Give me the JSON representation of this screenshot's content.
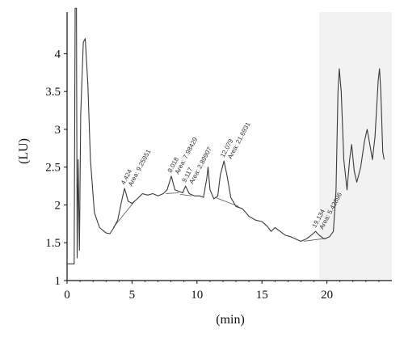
{
  "chart_data": {
    "type": "line",
    "xlabel": "(min)",
    "ylabel": "(LU)",
    "xlim": [
      0,
      25
    ],
    "ylim": [
      1,
      4.55
    ],
    "x_ticks": [
      0,
      5,
      10,
      15,
      20
    ],
    "y_ticks": [
      1,
      1.5,
      2,
      2.5,
      3,
      3.5,
      4
    ],
    "grid": false,
    "series": [
      {
        "points": [
          [
            0,
            1.22
          ],
          [
            0.55,
            1.22
          ],
          [
            0.62,
            4.6
          ],
          [
            0.72,
            4.6
          ],
          [
            0.78,
            1.3
          ],
          [
            0.85,
            2.6
          ],
          [
            0.95,
            1.4
          ],
          [
            1.05,
            3.2
          ],
          [
            1.25,
            4.15
          ],
          [
            1.4,
            4.2
          ],
          [
            1.6,
            3.6
          ],
          [
            1.8,
            2.6
          ],
          [
            2.1,
            1.9
          ],
          [
            2.5,
            1.7
          ],
          [
            3.0,
            1.63
          ],
          [
            3.3,
            1.62
          ],
          [
            3.6,
            1.7
          ],
          [
            3.9,
            1.8
          ],
          [
            4.2,
            2.05
          ],
          [
            4.42,
            2.22
          ],
          [
            4.7,
            2.05
          ],
          [
            5.0,
            2.02
          ],
          [
            5.4,
            2.08
          ],
          [
            5.8,
            2.15
          ],
          [
            6.2,
            2.13
          ],
          [
            6.6,
            2.15
          ],
          [
            7.0,
            2.12
          ],
          [
            7.4,
            2.15
          ],
          [
            7.7,
            2.2
          ],
          [
            8.02,
            2.38
          ],
          [
            8.3,
            2.2
          ],
          [
            8.6,
            2.18
          ],
          [
            8.9,
            2.16
          ],
          [
            9.12,
            2.25
          ],
          [
            9.4,
            2.15
          ],
          [
            9.8,
            2.12
          ],
          [
            10.2,
            2.12
          ],
          [
            10.5,
            2.1
          ],
          [
            10.75,
            2.35
          ],
          [
            10.85,
            2.5
          ],
          [
            11.0,
            2.2
          ],
          [
            11.3,
            2.08
          ],
          [
            11.6,
            2.12
          ],
          [
            11.8,
            2.4
          ],
          [
            12.08,
            2.58
          ],
          [
            12.3,
            2.4
          ],
          [
            12.6,
            2.1
          ],
          [
            13.0,
            1.98
          ],
          [
            13.5,
            1.95
          ],
          [
            14.0,
            1.85
          ],
          [
            14.5,
            1.8
          ],
          [
            15.0,
            1.78
          ],
          [
            15.4,
            1.72
          ],
          [
            15.7,
            1.65
          ],
          [
            16.0,
            1.7
          ],
          [
            16.4,
            1.65
          ],
          [
            16.8,
            1.6
          ],
          [
            17.2,
            1.58
          ],
          [
            17.6,
            1.55
          ],
          [
            18.0,
            1.52
          ],
          [
            18.4,
            1.55
          ],
          [
            18.8,
            1.6
          ],
          [
            19.13,
            1.65
          ],
          [
            19.4,
            1.6
          ],
          [
            19.8,
            1.55
          ],
          [
            20.2,
            1.58
          ],
          [
            20.5,
            1.65
          ],
          [
            20.7,
            2.2
          ],
          [
            20.85,
            3.5
          ],
          [
            20.95,
            3.8
          ],
          [
            21.1,
            3.5
          ],
          [
            21.3,
            2.6
          ],
          [
            21.55,
            2.2
          ],
          [
            21.75,
            2.6
          ],
          [
            21.9,
            2.8
          ],
          [
            22.1,
            2.45
          ],
          [
            22.3,
            2.3
          ],
          [
            22.6,
            2.5
          ],
          [
            22.9,
            2.85
          ],
          [
            23.1,
            3.0
          ],
          [
            23.3,
            2.8
          ],
          [
            23.5,
            2.6
          ],
          [
            23.7,
            2.9
          ],
          [
            23.95,
            3.65
          ],
          [
            24.05,
            3.8
          ],
          [
            24.15,
            3.5
          ],
          [
            24.3,
            2.7
          ],
          [
            24.4,
            2.6
          ]
        ]
      }
    ],
    "peak_annotations": [
      {
        "x": 4.424,
        "y": 2.22,
        "rt": "4.424",
        "area": "Area: 9.25951"
      },
      {
        "x": 8.018,
        "y": 2.38,
        "rt": "8.018",
        "area": "Area: 7.98429"
      },
      {
        "x": 9.117,
        "y": 2.25,
        "rt": "9.117",
        "area": "Area: 2.89907"
      },
      {
        "x": 12.079,
        "y": 2.58,
        "rt": "12.079",
        "area": "Area: 21.6931"
      },
      {
        "x": 19.134,
        "y": 1.65,
        "rt": "19.134",
        "area": "Area: 5.42896"
      }
    ],
    "baselines": [
      [
        [
          3.55,
          1.7
        ],
        [
          5.2,
          2.05
        ]
      ],
      [
        [
          7.6,
          2.15
        ],
        [
          8.6,
          2.16
        ]
      ],
      [
        [
          8.7,
          2.14
        ],
        [
          9.6,
          2.12
        ]
      ],
      [
        [
          11.4,
          2.1
        ],
        [
          13.2,
          1.98
        ]
      ],
      [
        [
          18.2,
          1.52
        ],
        [
          20.0,
          1.56
        ]
      ]
    ],
    "colors": {
      "line": "#3a3a3a",
      "axis": "#111111",
      "text": "#111111"
    }
  }
}
